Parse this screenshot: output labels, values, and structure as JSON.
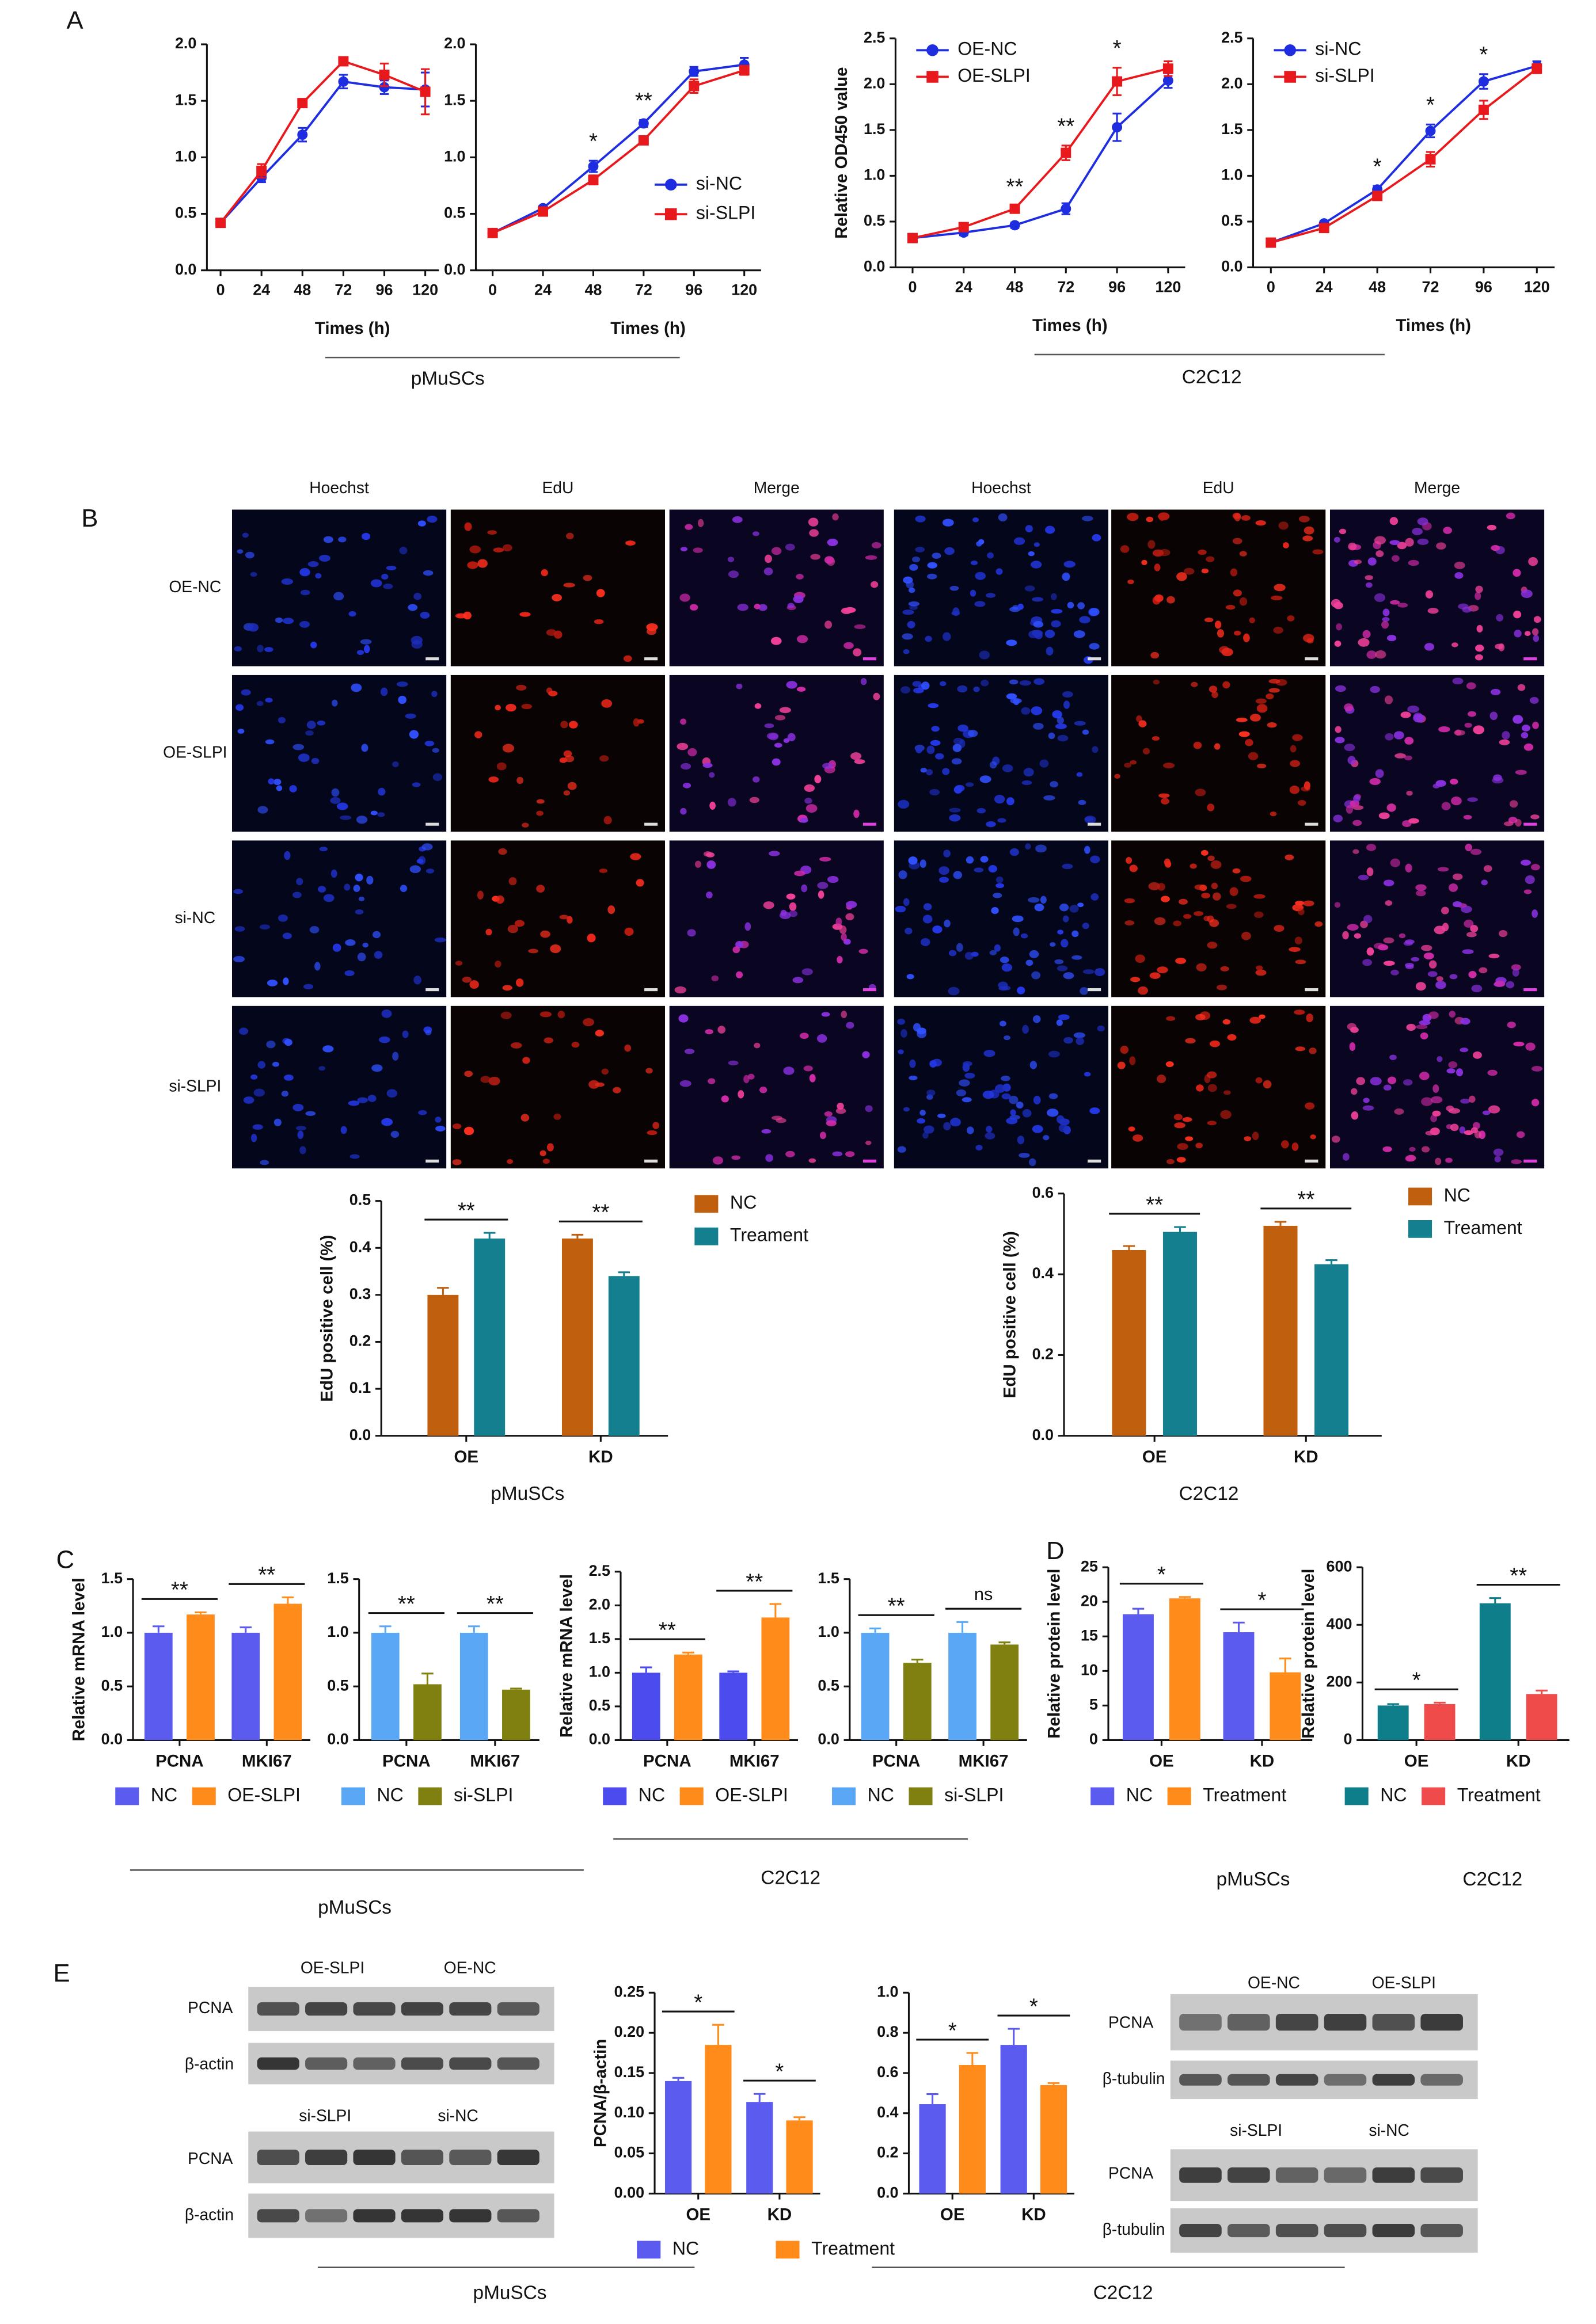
{
  "panels": [
    "A",
    "B",
    "C",
    "D",
    "E"
  ],
  "groups": [
    "pMuSCs",
    "C2C12",
    "pMuSCs",
    "C2C12",
    "pMuSCs",
    "C2C12",
    "pMuSCs",
    "C2C12",
    "pMuSCs",
    "C2C12"
  ],
  "microscopy": {
    "columns": [
      "Hoechst",
      "EdU",
      "Merge",
      "Hoechst",
      "EdU",
      "Merge"
    ],
    "rows": [
      "OE-NC",
      "OE-SLPI",
      "si-NC",
      "si-SLPI"
    ]
  },
  "blot_labels": [
    "OE-SLPI",
    "OE-NC",
    "PCNA",
    "β-actin",
    "si-SLPI",
    "si-NC",
    "PCNA",
    "β-actin",
    "OE-NC",
    "OE-SLPI",
    "PCNA",
    "β-tubulin",
    "si-SLPI",
    "si-NC",
    "PCNA",
    "β-tubulin"
  ],
  "chart_data": [
    {
      "type": "line",
      "x_label": "Times (h)",
      "x": [
        0,
        24,
        48,
        72,
        96,
        120
      ],
      "xlim": [
        -8,
        128
      ],
      "xticks": [
        0,
        24,
        48,
        72,
        96,
        120
      ],
      "ylim": [
        0,
        2
      ],
      "yticks": [
        {
          "value": 0,
          "label": "0.0"
        },
        0.5,
        {
          "value": 1,
          "label": "1.0"
        },
        1.5,
        {
          "value": 2,
          "label": "2.0"
        }
      ],
      "series": [
        {
          "color": "#1f2de0",
          "marker": "circle",
          "values": [
            0.42,
            0.82,
            1.2,
            1.67,
            1.62,
            1.6
          ],
          "errors": [
            0.02,
            0.04,
            0.06,
            0.06,
            0.06,
            0.15
          ]
        },
        {
          "color": "#e8191c",
          "marker": "square",
          "values": [
            0.42,
            0.88,
            1.48,
            1.85,
            1.73,
            1.58
          ],
          "errors": [
            0.02,
            0.06,
            0.03,
            0.03,
            0.1,
            0.2
          ]
        }
      ]
    },
    {
      "type": "line",
      "x_label": "Times (h)",
      "x": [
        0,
        24,
        48,
        72,
        96,
        120
      ],
      "xlim": [
        -8,
        128
      ],
      "xticks": [
        0,
        24,
        48,
        72,
        96,
        120
      ],
      "ylim": [
        0,
        2
      ],
      "yticks": [
        {
          "value": 0,
          "label": "0.0"
        },
        0.5,
        {
          "value": 1,
          "label": "1.0"
        },
        1.5,
        {
          "value": 2,
          "label": "2.0"
        }
      ],
      "legend": "lower right",
      "series": [
        {
          "name": "si-NC",
          "color": "#1f2de0",
          "marker": "circle",
          "values": [
            0.33,
            0.55,
            0.92,
            1.3,
            1.76,
            1.82
          ],
          "errors": [
            0.02,
            0.02,
            0.05,
            0.03,
            0.04,
            0.06
          ]
        },
        {
          "name": "si-SLPI",
          "color": "#e8191c",
          "marker": "square",
          "values": [
            0.33,
            0.52,
            0.8,
            1.15,
            1.63,
            1.77
          ],
          "errors": [
            0.02,
            0.02,
            0.04,
            0.03,
            0.06,
            0.04
          ]
        }
      ],
      "annotations": [
        {
          "at": 48,
          "text": "*"
        },
        {
          "at": 72,
          "text": "**"
        }
      ]
    },
    {
      "type": "line",
      "x_label": "Times (h)",
      "y_label": "Relative OD450 value",
      "x": [
        0,
        24,
        48,
        72,
        96,
        120
      ],
      "xlim": [
        -8,
        128
      ],
      "xticks": [
        0,
        24,
        48,
        72,
        96,
        120
      ],
      "ylim": [
        0,
        2.5
      ],
      "yticks": [
        {
          "value": 0,
          "label": "0.0"
        },
        0.5,
        {
          "value": 1,
          "label": "1.0"
        },
        1.5,
        {
          "value": 2,
          "label": "2.0"
        },
        2.5
      ],
      "legend": "upper left",
      "series": [
        {
          "name": "OE-NC",
          "color": "#1f2de0",
          "marker": "circle",
          "values": [
            0.32,
            0.38,
            0.46,
            0.64,
            1.53,
            2.04
          ],
          "errors": [
            0.03,
            0.03,
            0.03,
            0.06,
            0.15,
            0.08
          ]
        },
        {
          "name": "OE-SLPI",
          "color": "#e8191c",
          "marker": "square",
          "values": [
            0.32,
            0.44,
            0.64,
            1.25,
            2.03,
            2.17
          ],
          "errors": [
            0.03,
            0.03,
            0.03,
            0.08,
            0.15,
            0.08
          ]
        }
      ],
      "annotations": [
        {
          "at": 48,
          "text": "**"
        },
        {
          "at": 72,
          "text": "**"
        },
        {
          "at": 96,
          "text": "*"
        }
      ]
    },
    {
      "type": "line",
      "x_label": "Times (h)",
      "x": [
        0,
        24,
        48,
        72,
        96,
        120
      ],
      "xlim": [
        -8,
        128
      ],
      "xticks": [
        0,
        24,
        48,
        72,
        96,
        120
      ],
      "ylim": [
        0,
        2.5
      ],
      "yticks": [
        {
          "value": 0,
          "label": "0.0"
        },
        0.5,
        {
          "value": 1,
          "label": "1.0"
        },
        1.5,
        {
          "value": 2,
          "label": "2.0"
        },
        2.5
      ],
      "legend": "upper left",
      "series": [
        {
          "name": "si-NC",
          "color": "#1f2de0",
          "marker": "circle",
          "values": [
            0.27,
            0.48,
            0.85,
            1.49,
            2.03,
            2.2
          ],
          "errors": [
            0.02,
            0.03,
            0.04,
            0.07,
            0.08,
            0.05
          ]
        },
        {
          "name": "si-SLPI",
          "color": "#e8191c",
          "marker": "square",
          "values": [
            0.27,
            0.43,
            0.78,
            1.18,
            1.72,
            2.17
          ],
          "errors": [
            0.02,
            0.03,
            0.04,
            0.08,
            0.1,
            0.05
          ]
        }
      ],
      "annotations": [
        {
          "at": 48,
          "text": "*"
        },
        {
          "at": 72,
          "text": "*"
        },
        {
          "at": 96,
          "text": "*"
        }
      ]
    },
    {
      "type": "bar",
      "y_label": "EdU positive cell (%)",
      "categories": [
        "OE",
        "KD"
      ],
      "ylim": [
        0,
        0.5
      ],
      "yticks": [
        {
          "value": 0,
          "label": "0.0"
        },
        0.1,
        0.2,
        0.3,
        0.4,
        0.5
      ],
      "legend": "right",
      "series": [
        {
          "name": "NC",
          "color": "#c0600e",
          "values": [
            0.3,
            0.42
          ],
          "errors": [
            0.015,
            0.008
          ]
        },
        {
          "name": "Treament",
          "color": "#14808f",
          "values": [
            0.42,
            0.34
          ],
          "errors": [
            0.012,
            0.008
          ]
        }
      ],
      "annotations": [
        {
          "at": "OE",
          "text": "**"
        },
        {
          "at": "KD",
          "text": "**"
        }
      ]
    },
    {
      "type": "bar",
      "y_label": "EdU positive cell (%)",
      "categories": [
        "OE",
        "KD"
      ],
      "ylim": [
        0,
        0.6
      ],
      "yticks": [
        {
          "value": 0,
          "label": "0.0"
        },
        0.2,
        0.4,
        0.6
      ],
      "legend": "right",
      "series": [
        {
          "name": "NC",
          "color": "#c0600e",
          "values": [
            0.46,
            0.52
          ],
          "errors": [
            0.01,
            0.01
          ]
        },
        {
          "name": "Treament",
          "color": "#14808f",
          "values": [
            0.505,
            0.425
          ],
          "errors": [
            0.012,
            0.01
          ]
        }
      ],
      "annotations": [
        {
          "at": "OE",
          "text": "**"
        },
        {
          "at": "KD",
          "text": "**"
        }
      ]
    },
    {
      "type": "bar",
      "y_label": "Relative mRNA level",
      "categories": [
        "PCNA",
        "MKI67"
      ],
      "ylim": [
        0,
        1.5
      ],
      "yticks": [
        {
          "value": 0,
          "label": "0.0"
        },
        0.5,
        {
          "value": 1,
          "label": "1.0"
        },
        1.5
      ],
      "legend": "bottom",
      "series": [
        {
          "name": "NC",
          "color": "#5b5bf0",
          "values": [
            1.0,
            1.0
          ],
          "errors": [
            0.06,
            0.05
          ]
        },
        {
          "name": "OE-SLPI",
          "color": "#ff8c1a",
          "values": [
            1.17,
            1.27
          ],
          "errors": [
            0.02,
            0.06
          ]
        }
      ],
      "annotations": [
        {
          "at": "PCNA",
          "text": "**"
        },
        {
          "at": "MKI67",
          "text": "**"
        }
      ]
    },
    {
      "type": "bar",
      "categories": [
        "PCNA",
        "MKI67"
      ],
      "ylim": [
        0,
        1.5
      ],
      "yticks": [
        {
          "value": 0,
          "label": "0.0"
        },
        0.5,
        {
          "value": 1,
          "label": "1.0"
        },
        1.5
      ],
      "legend": "bottom",
      "series": [
        {
          "name": "NC",
          "color": "#5aa7f5",
          "values": [
            1.0,
            1.0
          ],
          "errors": [
            0.06,
            0.06
          ]
        },
        {
          "name": "si-SLPI",
          "color": "#808010",
          "values": [
            0.52,
            0.47
          ],
          "errors": [
            0.1,
            0.01
          ]
        }
      ],
      "annotations": [
        {
          "at": "PCNA",
          "text": "**"
        },
        {
          "at": "MKI67",
          "text": "**"
        }
      ]
    },
    {
      "type": "bar",
      "y_label": "Relative mRNA level",
      "categories": [
        "PCNA",
        "MKI67"
      ],
      "ylim": [
        0,
        2.5
      ],
      "yticks": [
        {
          "value": 0,
          "label": "0.0"
        },
        0.5,
        {
          "value": 1,
          "label": "1.0"
        },
        1.5,
        {
          "value": 2,
          "label": "2.0"
        },
        2.5
      ],
      "legend": "bottom",
      "series": [
        {
          "name": "NC",
          "color": "#4b4bee",
          "values": [
            1.0,
            1.0
          ],
          "errors": [
            0.08,
            0.02
          ]
        },
        {
          "name": "OE-SLPI",
          "color": "#ff8c1a",
          "values": [
            1.27,
            1.82
          ],
          "errors": [
            0.03,
            0.2
          ]
        }
      ],
      "annotations": [
        {
          "at": "PCNA",
          "text": "**"
        },
        {
          "at": "MKI67",
          "text": "**"
        }
      ]
    },
    {
      "type": "bar",
      "categories": [
        "PCNA",
        "MKI67"
      ],
      "ylim": [
        0,
        1.5
      ],
      "yticks": [
        {
          "value": 0,
          "label": "0.0"
        },
        0.5,
        {
          "value": 1,
          "label": "1.0"
        },
        1.5
      ],
      "legend": "bottom",
      "series": [
        {
          "name": "NC",
          "color": "#5aa7f5",
          "values": [
            1.0,
            1.0
          ],
          "errors": [
            0.04,
            0.1
          ]
        },
        {
          "name": "si-SLPI",
          "color": "#808010",
          "values": [
            0.72,
            0.89
          ],
          "errors": [
            0.03,
            0.02
          ]
        }
      ],
      "annotations": [
        {
          "at": "PCNA",
          "text": "**"
        },
        {
          "at": "MKI67",
          "text": "ns"
        }
      ]
    },
    {
      "type": "bar",
      "y_label": "Relative protein level",
      "categories": [
        "OE",
        "KD"
      ],
      "ylim": [
        0,
        25
      ],
      "yticks": [
        0,
        5,
        10,
        15,
        20,
        25
      ],
      "legend": "bottom",
      "series": [
        {
          "name": "NC",
          "color": "#5b5bf0",
          "values": [
            18.2,
            15.6
          ],
          "errors": [
            0.8,
            1.4
          ]
        },
        {
          "name": "Treatment",
          "color": "#ff8c1a",
          "values": [
            20.5,
            9.8
          ],
          "errors": [
            0.2,
            2
          ]
        }
      ],
      "annotations": [
        {
          "at": "OE",
          "text": "*"
        },
        {
          "at": "KD",
          "text": "*"
        }
      ]
    },
    {
      "type": "bar",
      "y_label": "Relative protein level",
      "categories": [
        "OE",
        "KD"
      ],
      "ylim": [
        0,
        600
      ],
      "yticks": [
        0,
        200,
        400,
        600
      ],
      "legend": "bottom",
      "series": [
        {
          "name": "NC",
          "color": "#0e7f8a",
          "values": [
            120,
            475
          ],
          "errors": [
            5,
            18
          ]
        },
        {
          "name": "Treatment",
          "color": "#f04b4b",
          "values": [
            125,
            160
          ],
          "errors": [
            5,
            12
          ]
        }
      ],
      "annotations": [
        {
          "at": "OE",
          "text": "*"
        },
        {
          "at": "KD",
          "text": "**"
        }
      ]
    },
    {
      "type": "bar",
      "y_label": "PCNA/β-actin",
      "categories": [
        "OE",
        "KD"
      ],
      "ylim": [
        0,
        0.25
      ],
      "yticks": [
        {
          "value": 0,
          "label": "0.00"
        },
        0.05,
        {
          "value": 0.1,
          "label": "0.10"
        },
        0.15,
        {
          "value": 0.2,
          "label": "0.20"
        },
        0.25
      ],
      "legend": "bottom",
      "series": [
        {
          "name": "NC",
          "color": "#5b5bf0",
          "values": [
            0.14,
            0.114
          ],
          "errors": [
            0.004,
            0.01
          ]
        },
        {
          "name": "Treatment",
          "color": "#ff8c1a",
          "values": [
            0.185,
            0.091
          ],
          "errors": [
            0.025,
            0.004
          ]
        }
      ],
      "annotations": [
        {
          "at": "OE",
          "text": "*"
        },
        {
          "at": "KD",
          "text": "*"
        }
      ]
    },
    {
      "type": "bar",
      "categories": [
        "OE",
        "KD"
      ],
      "ylim": [
        0,
        1
      ],
      "yticks": [
        {
          "value": 0,
          "label": "0.0"
        },
        0.2,
        0.4,
        0.6,
        0.8,
        {
          "value": 1,
          "label": "1.0"
        }
      ],
      "series": [
        {
          "color": "#5b5bf0",
          "values": [
            0.445,
            0.74
          ],
          "errors": [
            0.05,
            0.08
          ]
        },
        {
          "color": "#ff8c1a",
          "values": [
            0.64,
            0.54
          ],
          "errors": [
            0.06,
            0.01
          ]
        }
      ],
      "annotations": [
        {
          "at": "OE",
          "text": "*"
        },
        {
          "at": "KD",
          "text": "*"
        }
      ]
    }
  ]
}
